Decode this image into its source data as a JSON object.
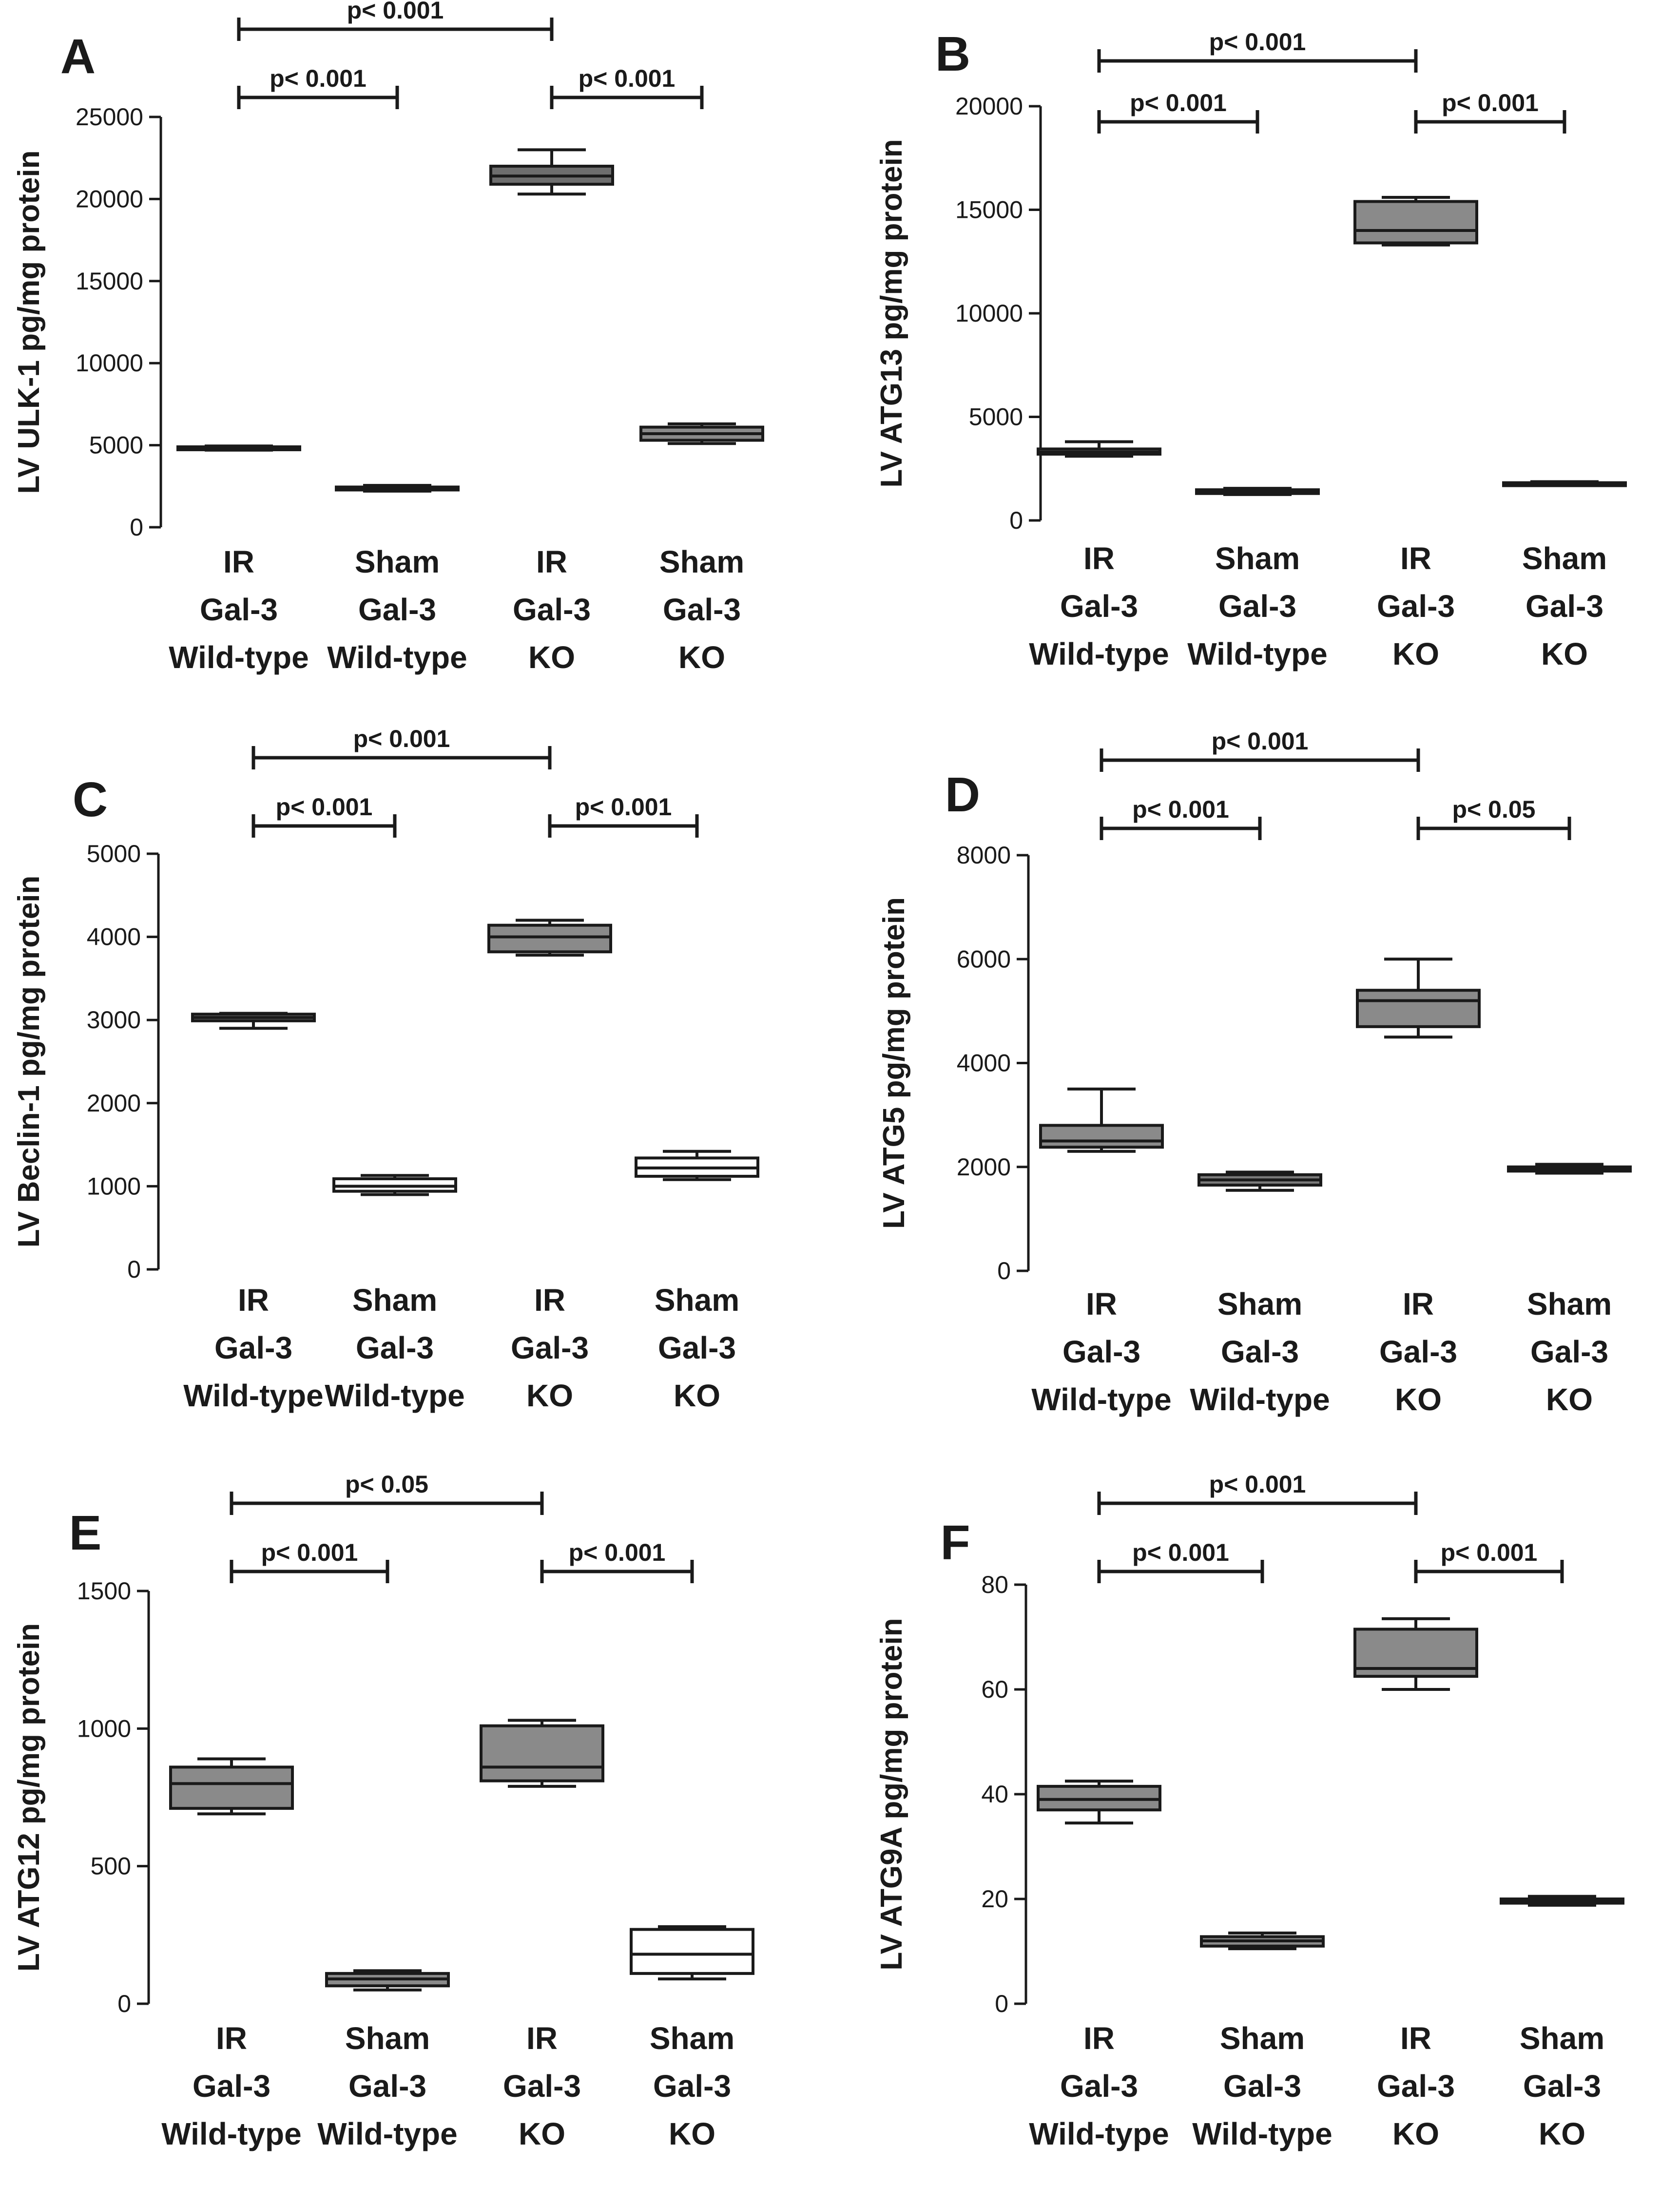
{
  "chart_data": [
    {
      "type": "box",
      "panel": "A",
      "ylabel": "LV ULK-1 pg/mg protein",
      "ylim": [
        0,
        25000
      ],
      "yticks": [
        0,
        5000,
        10000,
        15000,
        20000,
        25000
      ],
      "categories": [
        [
          "IR",
          "Gal-3",
          "Wild-type"
        ],
        [
          "Sham",
          "Gal-3",
          "Wild-type"
        ],
        [
          "IR",
          "Gal-3",
          "KO"
        ],
        [
          "Sham",
          "Gal-3",
          "KO"
        ]
      ],
      "boxes": [
        {
          "min": 4700,
          "q1": 4780,
          "median": 4850,
          "q3": 4900,
          "max": 4950,
          "fill": "#7a7a7a"
        },
        {
          "min": 2200,
          "q1": 2300,
          "median": 2380,
          "q3": 2450,
          "max": 2550,
          "fill": "#7a7a7a"
        },
        {
          "min": 20300,
          "q1": 20900,
          "median": 21400,
          "q3": 22000,
          "max": 23000,
          "fill": "#6e6e6e"
        },
        {
          "min": 5100,
          "q1": 5300,
          "median": 5700,
          "q3": 6100,
          "max": 6300,
          "fill": "#8a8a8a"
        }
      ],
      "comparisons": [
        {
          "from": 0,
          "to": 2,
          "label": "p< 0.001",
          "level": 0
        },
        {
          "from": 0,
          "to": 1,
          "label": "p< 0.001",
          "level": 1
        },
        {
          "from": 2,
          "to": 3,
          "label": "p< 0.001",
          "level": 1
        }
      ]
    },
    {
      "type": "box",
      "panel": "B",
      "ylabel": "LV ATG13 pg/mg protein",
      "ylim": [
        0,
        20000
      ],
      "yticks": [
        0,
        5000,
        10000,
        15000,
        20000
      ],
      "categories": [
        [
          "IR",
          "Gal-3",
          "Wild-type"
        ],
        [
          "Sham",
          "Gal-3",
          "Wild-type"
        ],
        [
          "IR",
          "Gal-3",
          "KO"
        ],
        [
          "Sham",
          "Gal-3",
          "KO"
        ]
      ],
      "boxes": [
        {
          "min": 3100,
          "q1": 3200,
          "median": 3300,
          "q3": 3450,
          "max": 3800,
          "fill": "#7a7a7a"
        },
        {
          "min": 1250,
          "q1": 1300,
          "median": 1400,
          "q3": 1480,
          "max": 1550,
          "fill": "#7a7a7a"
        },
        {
          "min": 13300,
          "q1": 13400,
          "median": 14000,
          "q3": 15400,
          "max": 15600,
          "fill": "#8a8a8a"
        },
        {
          "min": 1700,
          "q1": 1740,
          "median": 1780,
          "q3": 1820,
          "max": 1870,
          "fill": "#7a7a7a"
        }
      ],
      "comparisons": [
        {
          "from": 0,
          "to": 2,
          "label": "p< 0.001",
          "level": 0
        },
        {
          "from": 0,
          "to": 1,
          "label": "p< 0.001",
          "level": 1
        },
        {
          "from": 2,
          "to": 3,
          "label": "p< 0.001",
          "level": 1
        }
      ]
    },
    {
      "type": "box",
      "panel": "C",
      "ylabel": "LV Beclin-1 pg/mg protein",
      "ylim": [
        0,
        5000
      ],
      "yticks": [
        0,
        1000,
        2000,
        3000,
        4000,
        5000
      ],
      "categories": [
        [
          "IR",
          "Gal-3",
          "Wild-type"
        ],
        [
          "Sham",
          "Gal-3",
          "Wild-type"
        ],
        [
          "IR",
          "Gal-3",
          "KO"
        ],
        [
          "Sham",
          "Gal-3",
          "KO"
        ]
      ],
      "boxes": [
        {
          "min": 2900,
          "q1": 2990,
          "median": 3030,
          "q3": 3070,
          "max": 3080,
          "fill": "#7a7a7a"
        },
        {
          "min": 900,
          "q1": 940,
          "median": 1000,
          "q3": 1090,
          "max": 1130,
          "fill": "#ffffff"
        },
        {
          "min": 3780,
          "q1": 3820,
          "median": 4000,
          "q3": 4140,
          "max": 4200,
          "fill": "#8a8a8a"
        },
        {
          "min": 1080,
          "q1": 1120,
          "median": 1220,
          "q3": 1340,
          "max": 1420,
          "fill": "#ffffff"
        }
      ],
      "comparisons": [
        {
          "from": 0,
          "to": 2,
          "label": "p< 0.001",
          "level": 0
        },
        {
          "from": 0,
          "to": 1,
          "label": "p< 0.001",
          "level": 1
        },
        {
          "from": 2,
          "to": 3,
          "label": "p< 0.001",
          "level": 1
        }
      ]
    },
    {
      "type": "box",
      "panel": "D",
      "ylabel": "LV ATG5 pg/mg protein",
      "ylim": [
        0,
        8000
      ],
      "yticks": [
        0,
        2000,
        4000,
        6000,
        8000
      ],
      "categories": [
        [
          "IR",
          "Gal-3",
          "Wild-type"
        ],
        [
          "Sham",
          "Gal-3",
          "Wild-type"
        ],
        [
          "IR",
          "Gal-3",
          "KO"
        ],
        [
          "Sham",
          "Gal-3",
          "KO"
        ]
      ],
      "boxes": [
        {
          "min": 2300,
          "q1": 2380,
          "median": 2500,
          "q3": 2800,
          "max": 3500,
          "fill": "#8a8a8a"
        },
        {
          "min": 1550,
          "q1": 1650,
          "median": 1750,
          "q3": 1850,
          "max": 1900,
          "fill": "#7a7a7a"
        },
        {
          "min": 4500,
          "q1": 4700,
          "median": 5200,
          "q3": 5400,
          "max": 6000,
          "fill": "#8a8a8a"
        },
        {
          "min": 1880,
          "q1": 1920,
          "median": 1960,
          "q3": 2000,
          "max": 2050,
          "fill": "#7a7a7a"
        }
      ],
      "comparisons": [
        {
          "from": 0,
          "to": 2,
          "label": "p< 0.001",
          "level": 0
        },
        {
          "from": 0,
          "to": 1,
          "label": "p< 0.001",
          "level": 1
        },
        {
          "from": 2,
          "to": 3,
          "label": "p< 0.05",
          "level": 1
        }
      ]
    },
    {
      "type": "box",
      "panel": "E",
      "ylabel": "LV ATG12 pg/mg protein",
      "ylim": [
        0,
        1500
      ],
      "yticks": [
        0,
        500,
        1000,
        1500
      ],
      "categories": [
        [
          "IR",
          "Gal-3",
          "Wild-type"
        ],
        [
          "Sham",
          "Gal-3",
          "Wild-type"
        ],
        [
          "IR",
          "Gal-3",
          "KO"
        ],
        [
          "Sham",
          "Gal-3",
          "KO"
        ]
      ],
      "boxes": [
        {
          "min": 690,
          "q1": 710,
          "median": 800,
          "q3": 860,
          "max": 890,
          "fill": "#8a8a8a"
        },
        {
          "min": 50,
          "q1": 65,
          "median": 90,
          "q3": 110,
          "max": 120,
          "fill": "#8a8a8a"
        },
        {
          "min": 790,
          "q1": 810,
          "median": 860,
          "q3": 1010,
          "max": 1030,
          "fill": "#8a8a8a"
        },
        {
          "min": 90,
          "q1": 110,
          "median": 180,
          "q3": 270,
          "max": 280,
          "fill": "#ffffff"
        }
      ],
      "comparisons": [
        {
          "from": 0,
          "to": 2,
          "label": "p< 0.05",
          "level": 0
        },
        {
          "from": 0,
          "to": 1,
          "label": "p< 0.001",
          "level": 1
        },
        {
          "from": 2,
          "to": 3,
          "label": "p< 0.001",
          "level": 1
        }
      ]
    },
    {
      "type": "box",
      "panel": "F",
      "ylabel": "LV ATG9A pg/mg protein",
      "ylim": [
        0,
        80
      ],
      "yticks": [
        0,
        20,
        40,
        60,
        80
      ],
      "categories": [
        [
          "IR",
          "Gal-3",
          "Wild-type"
        ],
        [
          "Sham",
          "Gal-3",
          "Wild-type"
        ],
        [
          "IR",
          "Gal-3",
          "KO"
        ],
        [
          "Sham",
          "Gal-3",
          "KO"
        ]
      ],
      "boxes": [
        {
          "min": 34.5,
          "q1": 37,
          "median": 39,
          "q3": 41.5,
          "max": 42.5,
          "fill": "#8a8a8a"
        },
        {
          "min": 10.5,
          "q1": 11,
          "median": 12,
          "q3": 12.8,
          "max": 13.5,
          "fill": "#8a8a8a"
        },
        {
          "min": 60,
          "q1": 62.5,
          "median": 64,
          "q3": 71.5,
          "max": 73.5,
          "fill": "#8a8a8a"
        },
        {
          "min": 18.8,
          "q1": 19.2,
          "median": 19.6,
          "q3": 20,
          "max": 20.5,
          "fill": "#7a7a7a"
        }
      ],
      "comparisons": [
        {
          "from": 0,
          "to": 2,
          "label": "p< 0.001",
          "level": 0
        },
        {
          "from": 0,
          "to": 1,
          "label": "p< 0.001",
          "level": 1
        },
        {
          "from": 2,
          "to": 3,
          "label": "p< 0.001",
          "level": 1
        }
      ]
    }
  ]
}
